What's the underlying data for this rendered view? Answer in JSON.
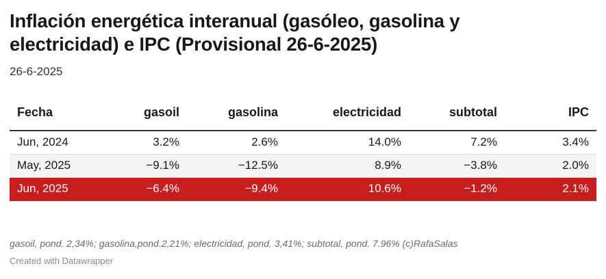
{
  "header": {
    "title": "Inflación energética interanual (gasóleo, gasolina y electricidad) e IPC (Provisional 26-6-2025)",
    "subtitle": "26-6-2025"
  },
  "table": {
    "columns": [
      "Fecha",
      "gasoil",
      "gasolina",
      "electricidad",
      "subtotal",
      "IPC"
    ],
    "rows": [
      [
        "Jun, 2024",
        "3.2%",
        "2.6%",
        "14.0%",
        "7.2%",
        "3.4%"
      ],
      [
        "May, 2025",
        "−9.1%",
        "−12.5%",
        "8.9%",
        "−3.8%",
        "2.0%"
      ],
      [
        "Jun, 2025",
        "−6.4%",
        "−9.4%",
        "10.6%",
        "−1.2%",
        "2.1%"
      ]
    ],
    "highlight_row_color": "#c71e1d"
  },
  "footer": {
    "notes": "gasoil, pond. 2,34%; gasolina,pond.2,21%; electricidad, pond. 3,41%; subtotal, pond. 7.96% (c)RafaSalas",
    "credit": "Created with Datawrapper"
  }
}
